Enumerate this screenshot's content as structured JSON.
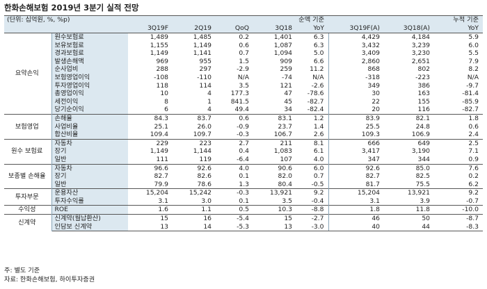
{
  "title": "한화손해보험 2019년 3분기 실적 전망",
  "header": {
    "unit": "(단위: 십억원, %, %p)",
    "quarter_group": "순액 기준",
    "cumulative_group": "누적 기준",
    "columns": [
      "3Q19F",
      "2Q19",
      "QoQ",
      "3Q18",
      "YoY",
      "3Q19F(A)",
      "3Q18(A)",
      "YoY"
    ]
  },
  "sections": [
    {
      "name": "요약손익",
      "rows": [
        {
          "label": "원수보험료",
          "values": [
            "1,489",
            "1,485",
            "0.2",
            "1,401",
            "6.3",
            "4,429",
            "4,184",
            "5.9"
          ]
        },
        {
          "label": "보유보험료",
          "values": [
            "1,155",
            "1,149",
            "0.6",
            "1,087",
            "6.3",
            "3,432",
            "3,239",
            "6.0"
          ]
        },
        {
          "label": "경과보험료",
          "values": [
            "1,149",
            "1,141",
            "0.7",
            "1,094",
            "5.0",
            "3,409",
            "3,230",
            "5.5"
          ]
        },
        {
          "label": "발생손해액",
          "values": [
            "969",
            "955",
            "1.5",
            "909",
            "6.6",
            "2,860",
            "2,651",
            "7.9"
          ]
        },
        {
          "label": "순사업비",
          "values": [
            "288",
            "297",
            "-2.9",
            "259",
            "11.2",
            "868",
            "802",
            "8.2"
          ]
        },
        {
          "label": "보험영업이익",
          "values": [
            "-108",
            "-110",
            "N/A",
            "-74",
            "N/A",
            "-318",
            "-223",
            "N/A"
          ]
        },
        {
          "label": "투자영업이익",
          "values": [
            "118",
            "114",
            "3.5",
            "121",
            "-2.6",
            "349",
            "386",
            "-9.7"
          ]
        },
        {
          "label": "총영업이익",
          "values": [
            "10",
            "4",
            "177.3",
            "47",
            "-78.6",
            "30",
            "163",
            "-81.4"
          ]
        },
        {
          "label": "세전이익",
          "values": [
            "8",
            "1",
            "841.5",
            "45",
            "-82.7",
            "22",
            "155",
            "-85.9"
          ]
        },
        {
          "label": "당기순이익",
          "values": [
            "6",
            "4",
            "49.4",
            "34",
            "-82.4",
            "20",
            "116",
            "-82.7"
          ]
        }
      ]
    },
    {
      "name": "보험영업",
      "rows": [
        {
          "label": "손해율",
          "values": [
            "84.3",
            "83.7",
            "0.6",
            "83.1",
            "1.2",
            "83.9",
            "82.1",
            "1.8"
          ]
        },
        {
          "label": "사업비율",
          "values": [
            "25.1",
            "26.0",
            "-0.9",
            "23.7",
            "1.4",
            "25.5",
            "24.8",
            "0.6"
          ]
        },
        {
          "label": "합산비율",
          "values": [
            "109.4",
            "109.7",
            "-0.3",
            "106.7",
            "2.6",
            "109.3",
            "106.9",
            "2.4"
          ]
        }
      ]
    },
    {
      "name": "원수 보험료",
      "rows": [
        {
          "label": "자동차",
          "values": [
            "229",
            "223",
            "2.7",
            "211",
            "8.1",
            "666",
            "649",
            "2.5"
          ]
        },
        {
          "label": "장기",
          "values": [
            "1,149",
            "1,144",
            "0.4",
            "1,083",
            "6.1",
            "3,417",
            "3,190",
            "7.1"
          ]
        },
        {
          "label": "일반",
          "values": [
            "111",
            "119",
            "-6.4",
            "107",
            "4.0",
            "347",
            "344",
            "0.9"
          ]
        }
      ]
    },
    {
      "name": "보종별 손해율",
      "rows": [
        {
          "label": "자동차",
          "values": [
            "96.6",
            "92.6",
            "4.0",
            "90.6",
            "6.0",
            "92.6",
            "85.0",
            "7.6"
          ]
        },
        {
          "label": "장기",
          "values": [
            "82.7",
            "82.6",
            "0.1",
            "82.0",
            "0.7",
            "82.7",
            "82.5",
            "0.2"
          ]
        },
        {
          "label": "일반",
          "values": [
            "79.9",
            "78.6",
            "1.3",
            "80.4",
            "-0.5",
            "81.7",
            "75.5",
            "6.2"
          ]
        }
      ]
    },
    {
      "name": "투자부문",
      "rows": [
        {
          "label": "운용자산",
          "values": [
            "15,204",
            "15,242",
            "-0.3",
            "13,921",
            "9.2",
            "15,204",
            "13,921",
            "9.2"
          ]
        },
        {
          "label": "투자수익률",
          "values": [
            "3.1",
            "3.0",
            "0.1",
            "3.5",
            "-0.4",
            "3.1",
            "3.9",
            "-0.7"
          ]
        }
      ]
    },
    {
      "name": "수익성",
      "rows": [
        {
          "label": "ROE",
          "values": [
            "1.6",
            "1.1",
            "0.5",
            "10.3",
            "-8.8",
            "1.8",
            "11.8",
            "-10.0"
          ]
        }
      ]
    },
    {
      "name": "신계약",
      "rows": [
        {
          "label": "신계약(월납환산)",
          "values": [
            "15",
            "16",
            "-5.4",
            "15",
            "-2.7",
            "46",
            "50",
            "-8.7"
          ]
        },
        {
          "label": "인담보 신계약",
          "values": [
            "13",
            "14",
            "-5.3",
            "13",
            "-3.0",
            "40",
            "44",
            "-8.3"
          ]
        }
      ]
    }
  ],
  "notes": [
    "주: 별도 기준",
    "자료: 한화손해보험, 하이투자증권"
  ],
  "colors": {
    "header_shade": "#dce8f0",
    "rule": "#555555"
  }
}
